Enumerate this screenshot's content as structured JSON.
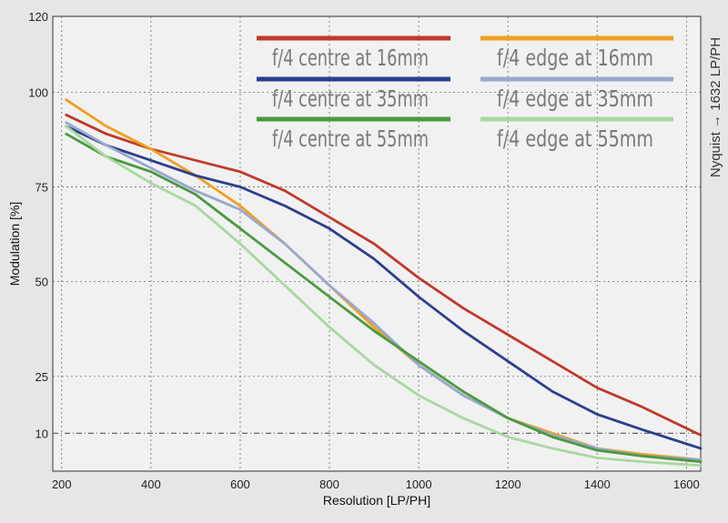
{
  "chart_data": {
    "type": "line",
    "xlabel": "Resolution [LP/PH]",
    "ylabel": "Modulation [%]",
    "side_label": "Nyquist → 1632 LP/PH",
    "xlim": [
      180,
      1632
    ],
    "ylim": [
      0,
      120
    ],
    "xticks": [
      200,
      400,
      600,
      800,
      1000,
      1200,
      1400,
      1600
    ],
    "yticks": [
      10,
      25,
      50,
      75,
      100,
      120
    ],
    "grid": "dashed",
    "reference_line_y": 10,
    "legend_placement": "top, two columns",
    "series": [
      {
        "name": "f/4 centre at 16mm",
        "color": "#c0392b",
        "points": [
          [
            210,
            94
          ],
          [
            300,
            89
          ],
          [
            400,
            85
          ],
          [
            500,
            82
          ],
          [
            600,
            79
          ],
          [
            700,
            74
          ],
          [
            800,
            67
          ],
          [
            900,
            60
          ],
          [
            1000,
            51
          ],
          [
            1100,
            43
          ],
          [
            1200,
            36
          ],
          [
            1300,
            29
          ],
          [
            1400,
            22
          ],
          [
            1500,
            17
          ],
          [
            1632,
            9.5
          ]
        ]
      },
      {
        "name": "f/4 edge at 16mm",
        "color": "#f0a020",
        "points": [
          [
            210,
            98
          ],
          [
            300,
            91
          ],
          [
            400,
            85
          ],
          [
            500,
            78
          ],
          [
            600,
            70
          ],
          [
            700,
            60
          ],
          [
            800,
            49
          ],
          [
            900,
            38
          ],
          [
            1000,
            28
          ],
          [
            1100,
            20
          ],
          [
            1200,
            14
          ],
          [
            1300,
            10
          ],
          [
            1400,
            6
          ],
          [
            1500,
            4.5
          ],
          [
            1632,
            3
          ]
        ]
      },
      {
        "name": "f/4 centre at 35mm",
        "color": "#2c3e8c",
        "points": [
          [
            210,
            91
          ],
          [
            300,
            86
          ],
          [
            400,
            82
          ],
          [
            500,
            78
          ],
          [
            600,
            75
          ],
          [
            700,
            70
          ],
          [
            800,
            64
          ],
          [
            900,
            56
          ],
          [
            1000,
            46
          ],
          [
            1100,
            37
          ],
          [
            1200,
            29
          ],
          [
            1300,
            21
          ],
          [
            1400,
            15
          ],
          [
            1500,
            11
          ],
          [
            1632,
            6
          ]
        ]
      },
      {
        "name": "f/4 edge at 35mm",
        "color": "#98a8d0",
        "points": [
          [
            210,
            92
          ],
          [
            300,
            86
          ],
          [
            400,
            80
          ],
          [
            500,
            74
          ],
          [
            600,
            69
          ],
          [
            700,
            60
          ],
          [
            800,
            49
          ],
          [
            900,
            39
          ],
          [
            1000,
            28
          ],
          [
            1100,
            20
          ],
          [
            1200,
            14
          ],
          [
            1300,
            9.5
          ],
          [
            1400,
            6
          ],
          [
            1500,
            4
          ],
          [
            1632,
            3
          ]
        ]
      },
      {
        "name": "f/4 centre at 55mm",
        "color": "#4a9a40",
        "points": [
          [
            210,
            89
          ],
          [
            300,
            83
          ],
          [
            400,
            79
          ],
          [
            500,
            73
          ],
          [
            600,
            64
          ],
          [
            700,
            55
          ],
          [
            800,
            46
          ],
          [
            900,
            37
          ],
          [
            1000,
            29
          ],
          [
            1100,
            21
          ],
          [
            1200,
            14
          ],
          [
            1300,
            9
          ],
          [
            1400,
            5.5
          ],
          [
            1500,
            4
          ],
          [
            1632,
            2.5
          ]
        ]
      },
      {
        "name": "f/4 edge at 55mm",
        "color": "#a8d8a0",
        "points": [
          [
            210,
            91
          ],
          [
            300,
            83
          ],
          [
            400,
            76
          ],
          [
            500,
            70
          ],
          [
            600,
            60
          ],
          [
            700,
            49
          ],
          [
            800,
            38
          ],
          [
            900,
            28
          ],
          [
            1000,
            20
          ],
          [
            1100,
            14
          ],
          [
            1200,
            9
          ],
          [
            1300,
            6
          ],
          [
            1400,
            3.5
          ],
          [
            1500,
            2.5
          ],
          [
            1632,
            1.5
          ]
        ]
      }
    ]
  }
}
